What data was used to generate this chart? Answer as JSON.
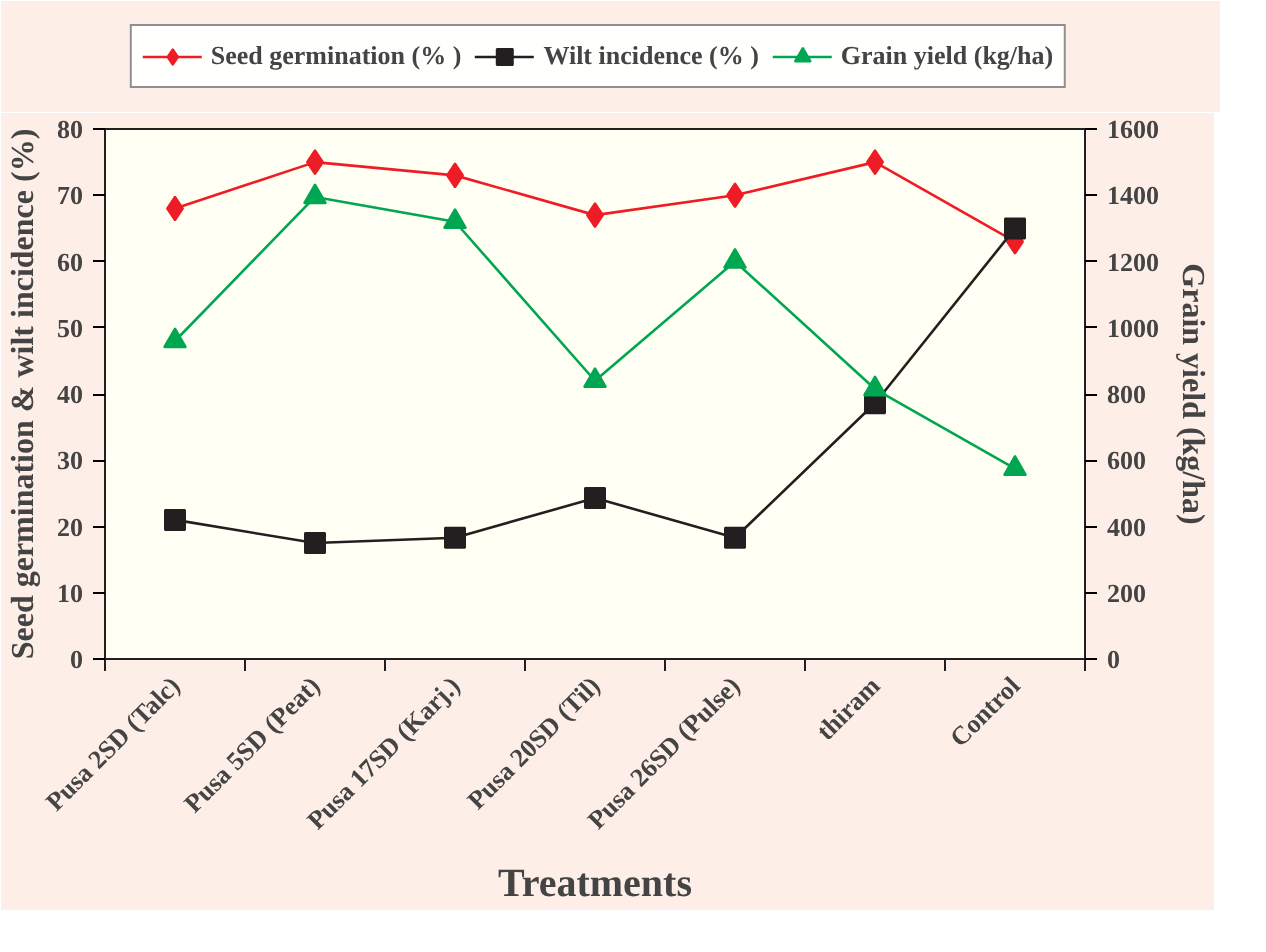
{
  "chart_data": {
    "type": "line",
    "xlabel": "Treatments",
    "ylabel": "Seed germination & wilt incidence (%)",
    "y2label": "Grain yield (kg/ha)",
    "categories": [
      "Pusa 2SD (Talc)",
      "Pusa 5SD (Peat)",
      "Pusa 17SD (Karj.)",
      "Pusa 20SD (Til)",
      "Pusa 26SD (Pulse)",
      "thiram",
      "Control"
    ],
    "series": [
      {
        "name": "Seed germination (% )",
        "color": "#ee1c25",
        "marker": "diamond",
        "values": [
          68,
          75,
          73,
          67,
          70,
          75,
          63
        ]
      },
      {
        "name": "Wilt incidence (% )",
        "color": "#231f20",
        "marker": "square",
        "values": [
          21,
          17.5,
          18.3,
          24.3,
          18.3,
          38.6,
          65
        ]
      },
      {
        "name": "Grain yield (kg/ha)",
        "color": "#00a651",
        "marker": "triangle",
        "axis": "y2",
        "values": [
          960,
          1395,
          1320,
          840,
          1200,
          815,
          575
        ]
      }
    ],
    "ylim": [
      0,
      80
    ],
    "yticks": [
      0,
      10,
      20,
      30,
      40,
      50,
      60,
      70,
      80
    ],
    "y2lim": [
      0,
      1600
    ],
    "y2ticks": [
      0,
      200,
      400,
      600,
      800,
      1000,
      1200,
      1400,
      1600
    ],
    "grid": false,
    "legend": "top"
  }
}
